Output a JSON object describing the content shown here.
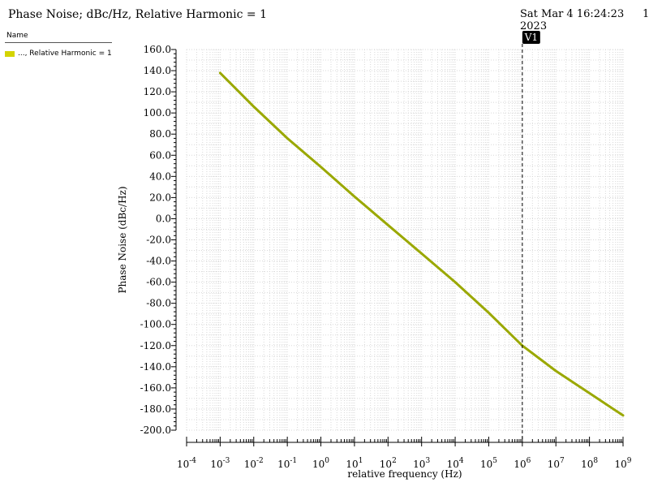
{
  "header": {
    "title": "Phase Noise; dBc/Hz, Relative Harmonic = 1",
    "timestamp": "Sat Mar 4 16:24:23 2023",
    "page_number": "1"
  },
  "legend": {
    "header": "Name",
    "items": [
      {
        "label": "..., Relative Harmonic = 1",
        "color": "#d4d400"
      }
    ]
  },
  "marker": {
    "label": "V1",
    "x": 1000000
  },
  "colors": {
    "series": "#9aa800",
    "grid": "#d8d8d8",
    "marker_fill": "#000000"
  },
  "chart_data": {
    "type": "line",
    "title": "Phase Noise; dBc/Hz, Relative Harmonic = 1",
    "xlabel": "relative frequency (Hz)",
    "ylabel": "Phase Noise (dBc/Hz)",
    "x_scale": "log",
    "xlim": [
      0.0001,
      1000000000
    ],
    "ylim": [
      -200,
      160
    ],
    "x_ticks": [
      {
        "value": 0.0001,
        "base": "10",
        "exp": "-4"
      },
      {
        "value": 0.001,
        "base": "10",
        "exp": "-3"
      },
      {
        "value": 0.01,
        "base": "10",
        "exp": "-2"
      },
      {
        "value": 0.1,
        "base": "10",
        "exp": "-1"
      },
      {
        "value": 1,
        "base": "10",
        "exp": "0"
      },
      {
        "value": 10,
        "base": "10",
        "exp": "1"
      },
      {
        "value": 100,
        "base": "10",
        "exp": "2"
      },
      {
        "value": 1000,
        "base": "10",
        "exp": "3"
      },
      {
        "value": 10000,
        "base": "10",
        "exp": "4"
      },
      {
        "value": 100000,
        "base": "10",
        "exp": "5"
      },
      {
        "value": 1000000,
        "base": "10",
        "exp": "6"
      },
      {
        "value": 10000000,
        "base": "10",
        "exp": "7"
      },
      {
        "value": 100000000,
        "base": "10",
        "exp": "8"
      },
      {
        "value": 1000000000,
        "base": "10",
        "exp": "9"
      }
    ],
    "y_ticks": [
      {
        "value": 160,
        "label": "160.0"
      },
      {
        "value": 140,
        "label": "140.0"
      },
      {
        "value": 120,
        "label": "120.0"
      },
      {
        "value": 100,
        "label": "100.0"
      },
      {
        "value": 80,
        "label": "80.0"
      },
      {
        "value": 60,
        "label": "60.0"
      },
      {
        "value": 40,
        "label": "40.0"
      },
      {
        "value": 20,
        "label": "20.0"
      },
      {
        "value": 0,
        "label": "0.0"
      },
      {
        "value": -20,
        "label": "-20.0"
      },
      {
        "value": -40,
        "label": "-40.0"
      },
      {
        "value": -60,
        "label": "-60.0"
      },
      {
        "value": -80,
        "label": "-80.0"
      },
      {
        "value": -100,
        "label": "-100.0"
      },
      {
        "value": -120,
        "label": "-120.0"
      },
      {
        "value": -140,
        "label": "-140.0"
      },
      {
        "value": -160,
        "label": "-160.0"
      },
      {
        "value": -180,
        "label": "-180.0"
      },
      {
        "value": -200,
        "label": "-200.0"
      }
    ],
    "grid": true,
    "legend_position": "top-left",
    "series": [
      {
        "color": "#9aa800",
        "x": [
          0.001,
          0.01,
          0.1,
          1,
          10,
          100,
          1000,
          10000,
          100000,
          1000000,
          10000000,
          100000000,
          1000000000
        ],
        "y": [
          137.8,
          106,
          76,
          49,
          21,
          -6,
          -33,
          -60,
          -89,
          -120,
          -144,
          -165,
          -186
        ]
      }
    ]
  }
}
